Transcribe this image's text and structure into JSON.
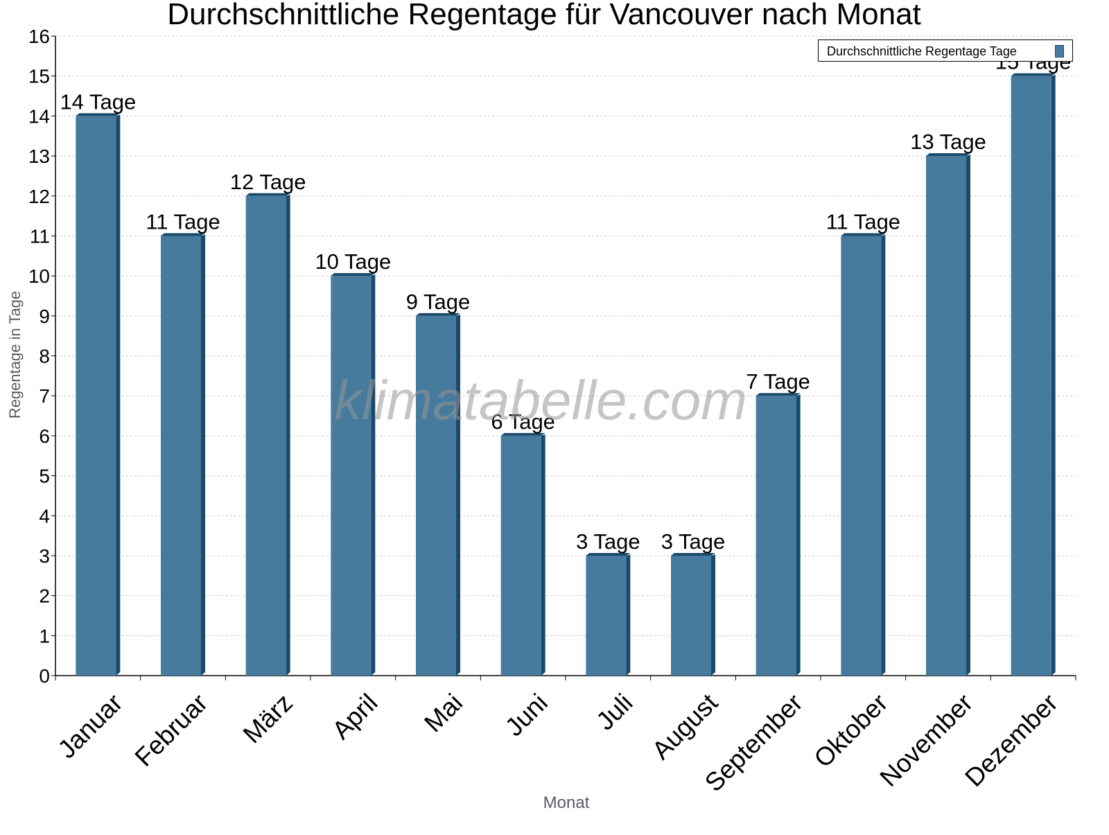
{
  "chart_data": {
    "type": "bar",
    "title": "Durchschnittliche Regentage für Vancouver nach Monat",
    "xlabel": "Monat",
    "ylabel": "Regentage in Tage",
    "categories": [
      "Januar",
      "Februar",
      "März",
      "April",
      "Mai",
      "Juni",
      "Juli",
      "August",
      "September",
      "Oktober",
      "November",
      "Dezember"
    ],
    "values": [
      14,
      11,
      12,
      10,
      9,
      6,
      3,
      3,
      7,
      11,
      13,
      15
    ],
    "value_labels": [
      "14 Tage",
      "11 Tage",
      "12 Tage",
      "10 Tage",
      "9 Tage",
      "6 Tage",
      "3 Tage",
      "3 Tage",
      "7 Tage",
      "11 Tage",
      "13 Tage",
      "15 Tage"
    ],
    "series": [
      {
        "name": "Durchschnittliche Regentage Tage",
        "values": [
          14,
          11,
          12,
          10,
          9,
          6,
          3,
          3,
          7,
          11,
          13,
          15
        ]
      }
    ],
    "ylim": [
      0,
      16
    ],
    "yticks": [
      0,
      1,
      2,
      3,
      4,
      5,
      6,
      7,
      8,
      9,
      10,
      11,
      12,
      13,
      14,
      15,
      16
    ],
    "grid": true,
    "legend_position": "top-right",
    "colors": {
      "bar": "#467b9e",
      "bar_side": "#1a4a6b",
      "grid": "#c8c8c8"
    }
  },
  "legend": {
    "label": "Durchschnittliche Regentage Tage"
  },
  "watermark": "klimatabelle.com"
}
